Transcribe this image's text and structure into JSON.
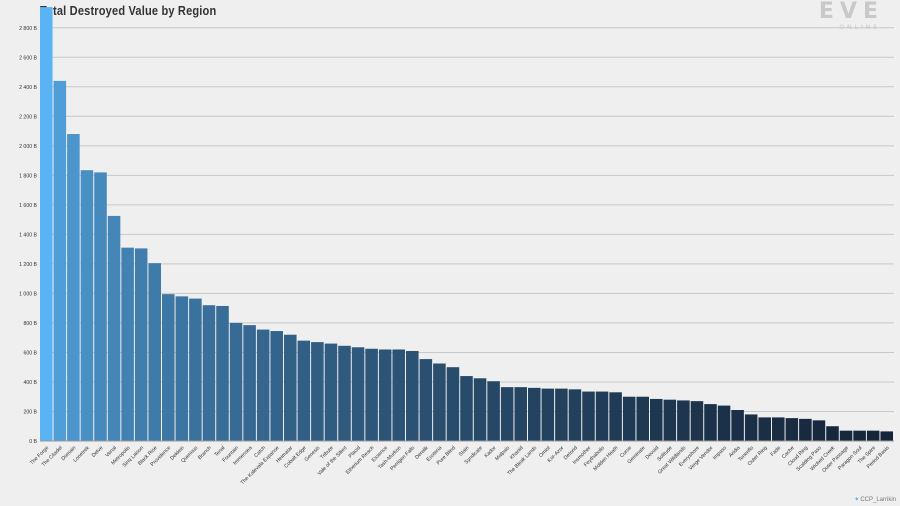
{
  "header": {
    "title": "Total Destroyed Value by Region",
    "logo_main": "EVE",
    "logo_sub": "ONLINE"
  },
  "credit": {
    "icon": "twitter-bird-icon",
    "text": "CCP_Larrikin"
  },
  "colors": {
    "top": "#5ab4f4",
    "bottom": "#152438",
    "grid": "#c8c8c8",
    "background": "#efefef"
  },
  "chart_data": {
    "type": "bar",
    "title": "Total Destroyed Value by Region",
    "xlabel": "",
    "ylabel": "",
    "ylim": [
      0,
      2900
    ],
    "yticks": [
      0,
      200,
      400,
      600,
      800,
      1000,
      1200,
      1400,
      1600,
      1800,
      2000,
      2200,
      2400,
      2600,
      2800
    ],
    "ytick_labels": [
      "0 B",
      "200 B",
      "400 B",
      "600 B",
      "800 B",
      "1 000 B",
      "1 200 B",
      "1 400 B",
      "1 600 B",
      "1 800 B",
      "2 000 B",
      "2 200 B",
      "2 400 B",
      "2 600 B",
      "2 800 B"
    ],
    "grid": true,
    "categories": [
      "The Forge",
      "The Citadel",
      "Domain",
      "Lonetrek",
      "Delve",
      "Venal",
      "Metropolis",
      "Sinq Laison",
      "Black Rise",
      "Providence",
      "Deklein",
      "Querious",
      "Branch",
      "Tenal",
      "Fountain",
      "Immensea",
      "Catch",
      "The Kalevala Expanse",
      "Heimatar",
      "Cobalt Edge",
      "Genesis",
      "Tribute",
      "Vale of the Silent",
      "Placid",
      "Etherium Reach",
      "Essence",
      "Tash-Murkon",
      "Perrigen Falls",
      "Derelik",
      "Esoteria",
      "Pure Blind",
      "Stain",
      "Syndicate",
      "Kador",
      "Malpais",
      "Khanid",
      "The Bleak Lands",
      "Omist",
      "Kor-Azor",
      "Detorid",
      "Insmother",
      "Feythabolis",
      "Molden Heath",
      "Curse",
      "Geminate",
      "Devoid",
      "Solitude",
      "Great Wildlands",
      "Everyshore",
      "Verge Vendor",
      "Impass",
      "Aridia",
      "Tenerifis",
      "Outer Ring",
      "Fade",
      "Cache",
      "Cloud Ring",
      "Scalding Pass",
      "Wicked Creek",
      "Outer Passage",
      "Paragon Soul",
      "The Spire",
      "Period Basis"
    ],
    "values": [
      2940,
      2440,
      2080,
      1835,
      1820,
      1525,
      1310,
      1305,
      1205,
      995,
      980,
      965,
      920,
      915,
      800,
      785,
      755,
      745,
      720,
      680,
      670,
      660,
      645,
      635,
      625,
      620,
      620,
      610,
      555,
      525,
      500,
      440,
      425,
      405,
      365,
      365,
      360,
      355,
      355,
      350,
      335,
      335,
      330,
      300,
      300,
      285,
      280,
      275,
      270,
      250,
      240,
      210,
      180,
      160,
      160,
      155,
      150,
      140,
      100,
      70,
      70,
      70,
      65
    ]
  }
}
